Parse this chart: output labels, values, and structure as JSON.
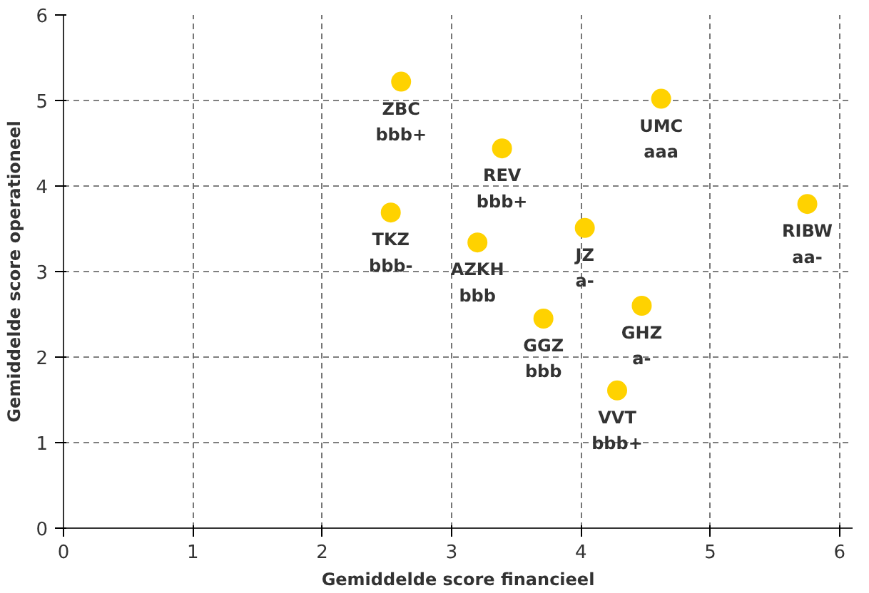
{
  "chart_data": {
    "type": "scatter",
    "xlabel": "Gemiddelde score financieel",
    "ylabel": "Gemiddelde score operationeel",
    "x": [
      2.61,
      4.62,
      3.39,
      2.53,
      3.2,
      4.03,
      5.75,
      3.71,
      4.47,
      4.28
    ],
    "series": [
      {
        "color": "#ffd200",
        "values": [
          5.22,
          5.02,
          4.44,
          3.69,
          3.34,
          3.51,
          3.79,
          2.45,
          2.6,
          1.61
        ]
      }
    ],
    "annotations": [
      {
        "text": "ZBC\nbbb+",
        "x": 2.61,
        "y": 5.22
      },
      {
        "text": "UMC\naaa",
        "x": 4.62,
        "y": 5.02
      },
      {
        "text": "REV\nbbb+",
        "x": 3.39,
        "y": 4.44
      },
      {
        "text": "TKZ\nbbb-",
        "x": 2.53,
        "y": 3.69
      },
      {
        "text": "AZKH\nbbb",
        "x": 3.2,
        "y": 3.34
      },
      {
        "text": "JZ\na-",
        "x": 4.03,
        "y": 3.51
      },
      {
        "text": "RIBW\naa-",
        "x": 5.75,
        "y": 3.79
      },
      {
        "text": "GGZ\nbbb",
        "x": 3.71,
        "y": 2.45
      },
      {
        "text": "GHZ\na-",
        "x": 4.47,
        "y": 2.6
      },
      {
        "text": "VVT\nbbb+",
        "x": 4.28,
        "y": 1.61
      }
    ],
    "xlim": [
      0,
      6.1
    ],
    "ylim": [
      0,
      6
    ],
    "xticks": [
      0,
      1,
      2,
      3,
      4,
      5,
      6
    ],
    "yticks": [
      0,
      1,
      2,
      3,
      4,
      5,
      6
    ],
    "grid": true,
    "marker": "circle"
  }
}
